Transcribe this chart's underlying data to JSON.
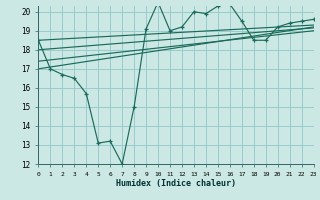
{
  "xlabel": "Humidex (Indice chaleur)",
  "bg_color": "#cce8e4",
  "grid_color": "#99cccc",
  "line_color": "#1a6b5a",
  "xmin": 0,
  "xmax": 23,
  "ymin": 12,
  "ymax": 20,
  "yticks": [
    12,
    13,
    14,
    15,
    16,
    17,
    18,
    19,
    20
  ],
  "xticks": [
    0,
    1,
    2,
    3,
    4,
    5,
    6,
    7,
    8,
    9,
    10,
    11,
    12,
    13,
    14,
    15,
    16,
    17,
    18,
    19,
    20,
    21,
    22,
    23
  ],
  "line1_x": [
    0,
    1,
    2,
    3,
    4,
    5,
    6,
    7,
    8,
    9,
    10,
    11,
    12,
    13,
    14,
    15,
    16,
    17,
    18,
    19,
    20,
    21,
    22,
    23
  ],
  "line1_y": [
    18.5,
    17.0,
    16.7,
    16.5,
    15.7,
    13.1,
    13.2,
    12.0,
    15.0,
    19.1,
    20.5,
    19.0,
    19.2,
    20.0,
    19.9,
    20.3,
    20.4,
    19.5,
    18.5,
    18.5,
    19.2,
    19.4,
    19.5,
    19.6
  ],
  "trend1_x": [
    0,
    23
  ],
  "trend1_y": [
    17.0,
    19.2
  ],
  "trend2_x": [
    0,
    23
  ],
  "trend2_y": [
    17.4,
    19.0
  ],
  "trend3_x": [
    0,
    23
  ],
  "trend3_y": [
    18.0,
    19.15
  ],
  "trend4_x": [
    0,
    23
  ],
  "trend4_y": [
    18.5,
    19.3
  ]
}
